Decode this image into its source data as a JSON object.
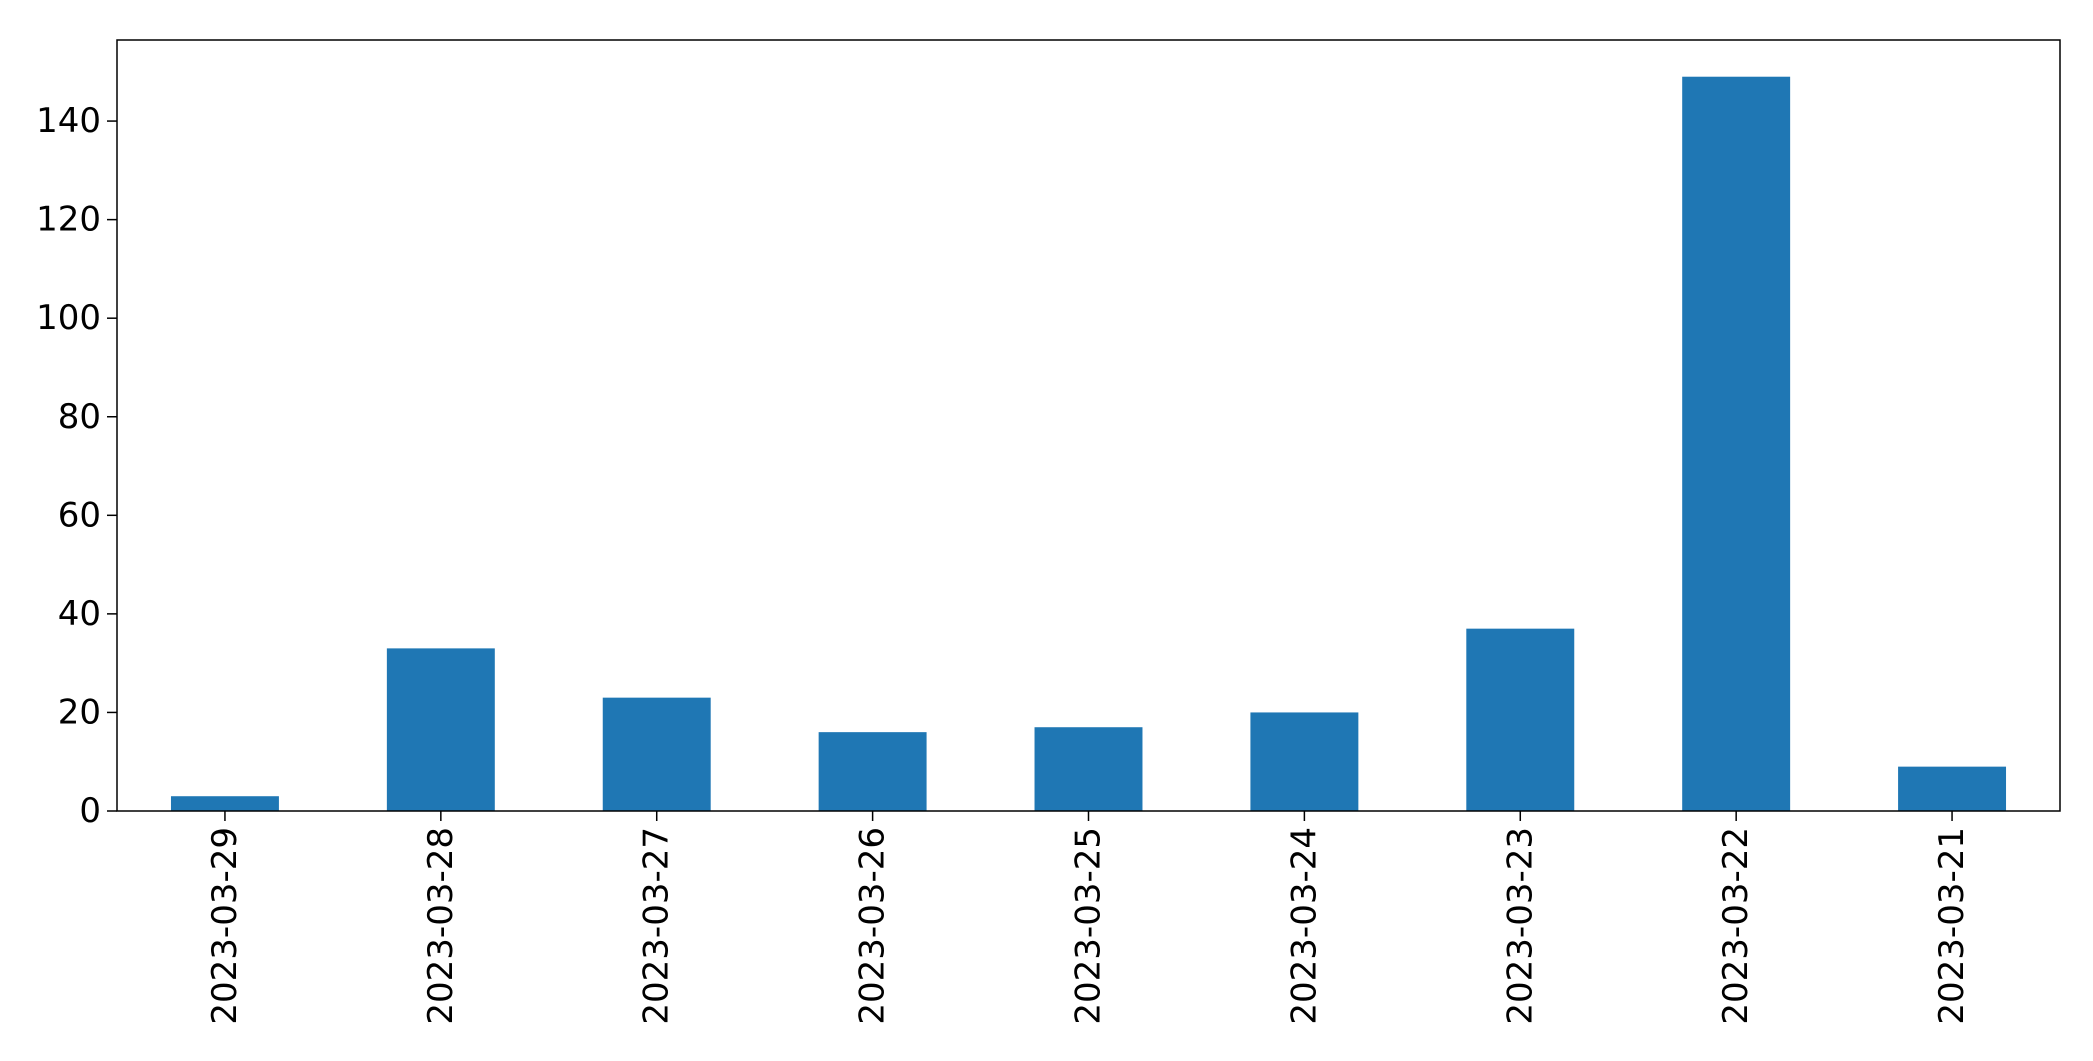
{
  "chart_data": {
    "type": "bar",
    "categories": [
      "2023-03-29",
      "2023-03-28",
      "2023-03-27",
      "2023-03-26",
      "2023-03-25",
      "2023-03-24",
      "2023-03-23",
      "2023-03-22",
      "2023-03-21"
    ],
    "values": [
      3,
      33,
      23,
      16,
      17,
      20,
      37,
      149,
      9
    ],
    "title": "",
    "xlabel": "",
    "ylabel": "",
    "ylim": [
      0,
      156.45
    ],
    "yticks": [
      0,
      20,
      40,
      60,
      80,
      100,
      120,
      140
    ],
    "x_tick_rotation": "vertical",
    "grid": false,
    "legend": "none",
    "bar_color": "#1f77b4"
  }
}
